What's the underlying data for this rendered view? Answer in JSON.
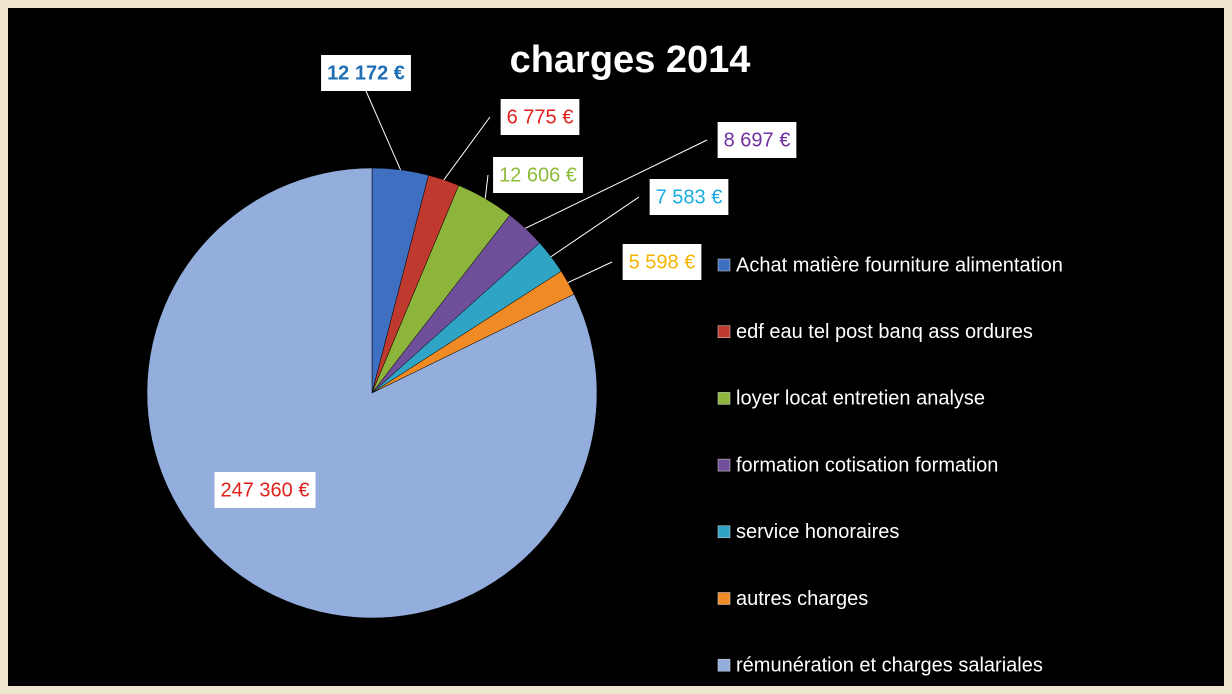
{
  "chart_data": {
    "type": "pie",
    "title": "charges 2014",
    "categories": [
      "Achat matière fourniture alimentation",
      "edf eau tel post banq ass ordures",
      "loyer locat entretien analyse",
      "formation cotisation formation",
      "service honoraires",
      "autres charges",
      "rémunération et charges salariales"
    ],
    "values": [
      12172,
      6775,
      12606,
      8697,
      7583,
      5598,
      247360
    ],
    "value_labels": [
      "12 172 €",
      "6 775 €",
      "12 606 €",
      "8 697 €",
      "7 583 €",
      "5 598 €",
      "247 360 €"
    ],
    "colors": [
      "#3e6fc0",
      "#c0392f",
      "#8db53c",
      "#6f4f9a",
      "#2fa4c4",
      "#f08a24",
      "#93aedc"
    ],
    "label_colors": [
      "#1f6fb5",
      "#e0201b",
      "#8dbb3a",
      "#7030a0",
      "#1aace0",
      "#f5b400",
      "#e0201b"
    ],
    "legend": "right"
  }
}
